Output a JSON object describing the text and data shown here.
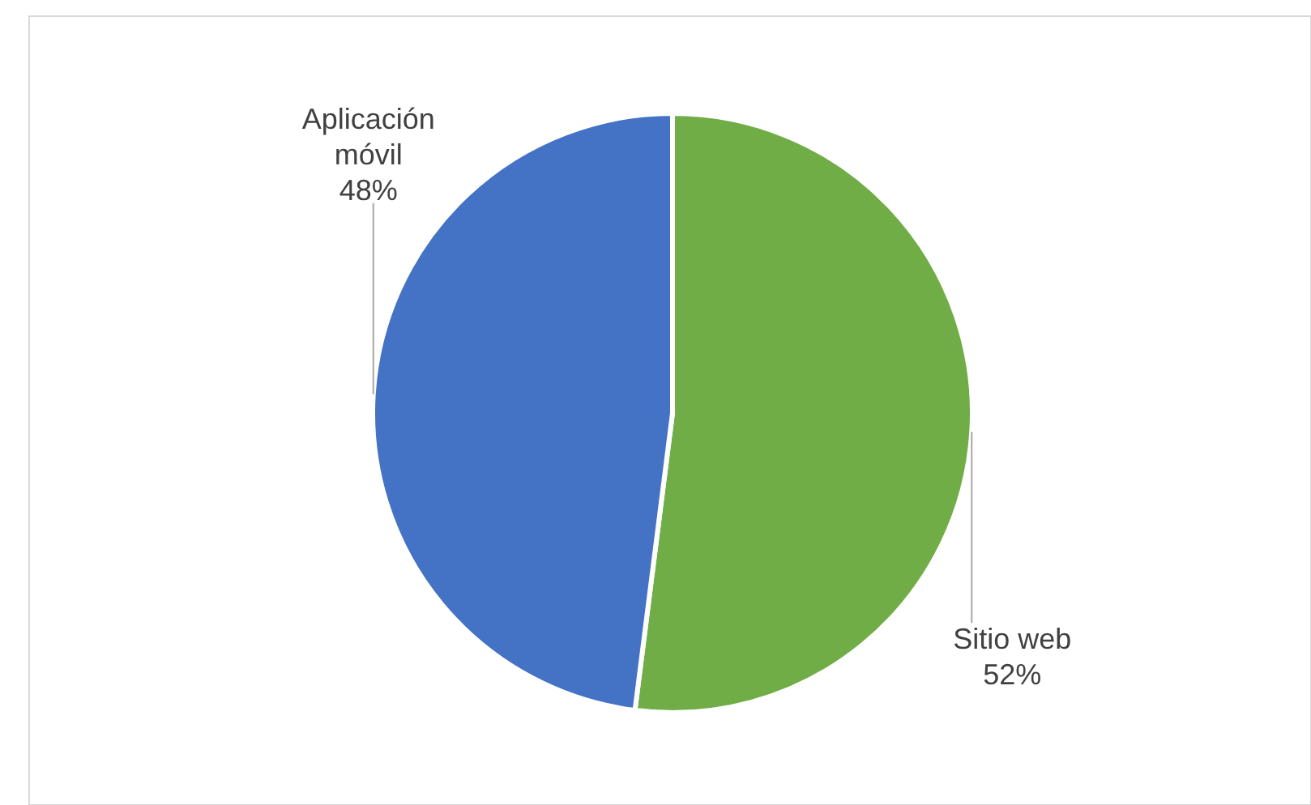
{
  "chart_data": {
    "type": "pie",
    "categories": [
      "Sitio web",
      "Aplicación móvil"
    ],
    "values": [
      52,
      48
    ],
    "value_labels": [
      "52%",
      "48%"
    ],
    "colors": [
      "#70ad47",
      "#4472c4"
    ]
  }
}
